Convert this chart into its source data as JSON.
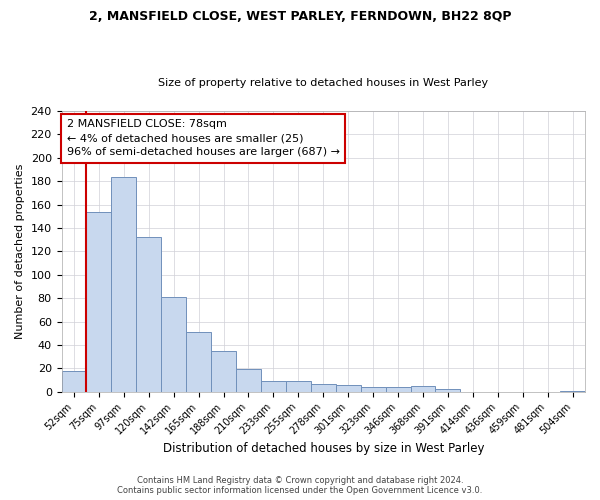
{
  "title": "2, MANSFIELD CLOSE, WEST PARLEY, FERNDOWN, BH22 8QP",
  "subtitle": "Size of property relative to detached houses in West Parley",
  "xlabel": "Distribution of detached houses by size in West Parley",
  "ylabel": "Number of detached properties",
  "footer_line1": "Contains HM Land Registry data © Crown copyright and database right 2024.",
  "footer_line2": "Contains public sector information licensed under the Open Government Licence v3.0.",
  "bin_labels": [
    "52sqm",
    "75sqm",
    "97sqm",
    "120sqm",
    "142sqm",
    "165sqm",
    "188sqm",
    "210sqm",
    "233sqm",
    "255sqm",
    "278sqm",
    "301sqm",
    "323sqm",
    "346sqm",
    "368sqm",
    "391sqm",
    "414sqm",
    "436sqm",
    "459sqm",
    "481sqm",
    "504sqm"
  ],
  "bar_heights": [
    18,
    154,
    184,
    132,
    81,
    51,
    35,
    19,
    9,
    9,
    7,
    6,
    4,
    4,
    5,
    2,
    0,
    0,
    0,
    0,
    1
  ],
  "bar_color": "#c8d8ee",
  "bar_edge_color": "#7090bb",
  "vline_x": 0.5,
  "vline_color": "#cc0000",
  "annotation_text": "2 MANSFIELD CLOSE: 78sqm\n← 4% of detached houses are smaller (25)\n96% of semi-detached houses are larger (687) →",
  "annotation_box_color": "#ffffff",
  "annotation_box_edge_color": "#cc0000",
  "ylim": [
    0,
    240
  ],
  "yticks": [
    0,
    20,
    40,
    60,
    80,
    100,
    120,
    140,
    160,
    180,
    200,
    220,
    240
  ],
  "background_color": "#ffffff",
  "grid_color": "#d0d0d8"
}
